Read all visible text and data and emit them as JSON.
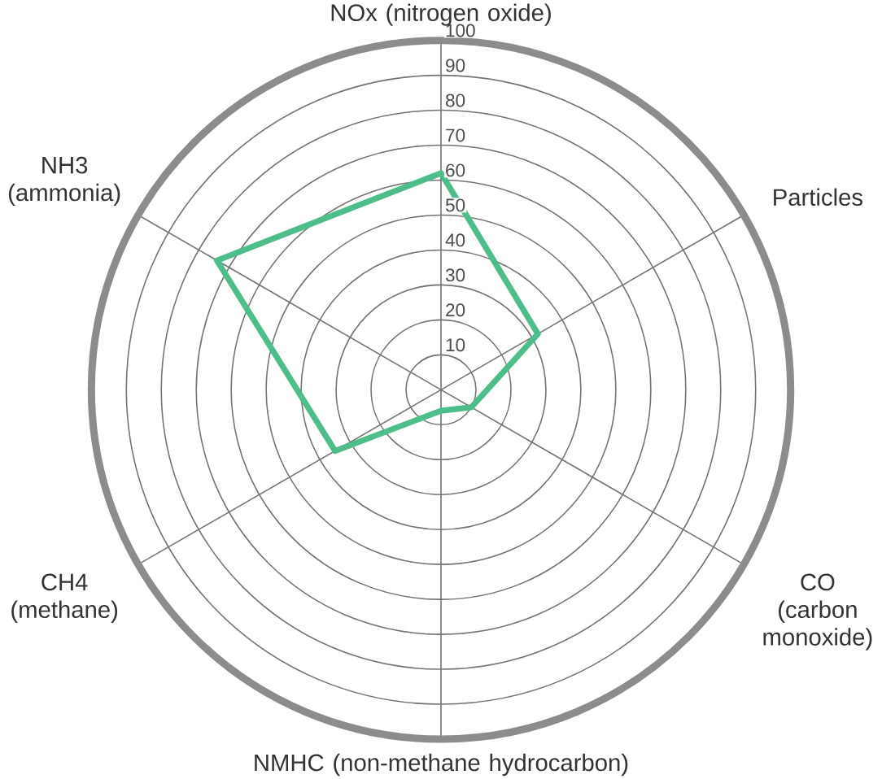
{
  "chart_data": {
    "type": "radar",
    "categories": [
      "NOx (nitrogen oxide)",
      "Particles",
      "CO (carbon monoxide)",
      "NMHC (non-methane hydrocarbon)",
      "CH4 (methane)",
      "NH3 (ammonia)"
    ],
    "series": [
      {
        "color": "#4dbd8a",
        "values": [
          62,
          32,
          10,
          6,
          35,
          74
        ]
      }
    ],
    "ylim": [
      0,
      100
    ],
    "yticks": [
      10,
      20,
      30,
      40,
      50,
      60,
      70,
      80,
      90,
      100
    ],
    "grid": true
  }
}
